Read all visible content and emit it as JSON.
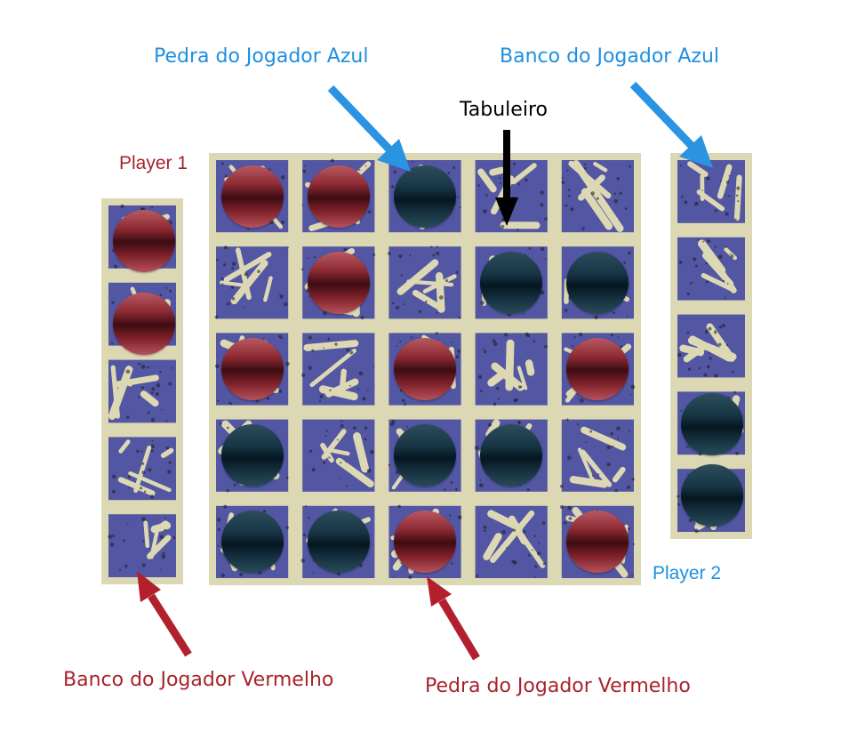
{
  "labels": {
    "blue_stone": "Pedra do Jogador Azul",
    "blue_bank": "Banco do Jogador Azul",
    "board": "Tabuleiro",
    "player1": "Player 1",
    "player2": "Player 2",
    "red_bank": "Banco do Jogador Vermelho",
    "red_stone": "Pedra do Jogador Vermelho"
  },
  "colors": {
    "blue_label": "#1f8fe0",
    "red_label": "#a8232b",
    "board_bg": "#ddd8b4",
    "board_glyph": "#3a3fa0",
    "red_stone": "#8e2a33",
    "blue_stone": "#173545"
  },
  "board": {
    "rows": 5,
    "cols": 5,
    "cells": [
      [
        "red",
        "red",
        "blue",
        "",
        ""
      ],
      [
        "",
        "red",
        "",
        "blue",
        "blue"
      ],
      [
        "red",
        "",
        "red",
        "",
        "red"
      ],
      [
        "blue",
        "",
        "blue",
        "blue",
        ""
      ],
      [
        "blue",
        "blue",
        "red",
        "",
        "red"
      ]
    ]
  },
  "red_bank": {
    "stones": 2
  },
  "blue_bank": {
    "stones": 2
  }
}
